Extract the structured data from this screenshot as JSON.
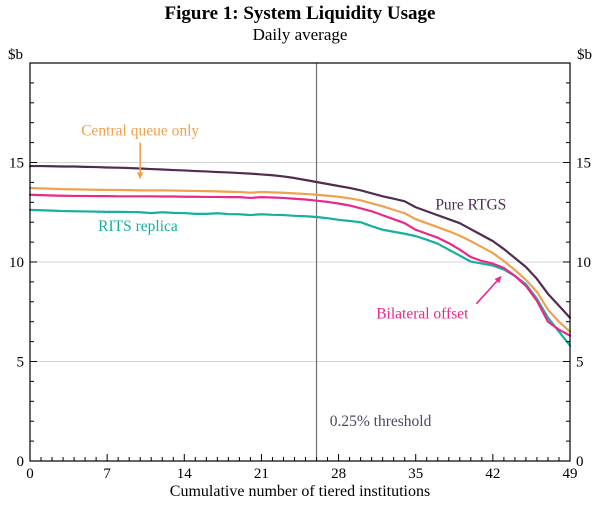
{
  "figure": {
    "title": "Figure 1: System Liquidity Usage",
    "subtitle": "Daily average"
  },
  "chart_data": {
    "type": "line",
    "title": "Figure 1: System Liquidity Usage",
    "subtitle": "Daily average",
    "xlabel": "Cumulative number of tiered institutions",
    "ylabel": "$b",
    "xlim": [
      0,
      49
    ],
    "ylim": [
      0,
      20
    ],
    "x_ticks": [
      0,
      7,
      14,
      21,
      28,
      35,
      42,
      49
    ],
    "y_ticks": [
      0,
      5,
      10,
      15
    ],
    "grid": "horizontal",
    "grid_color": "#d4d4d4",
    "x": [
      0,
      1,
      2,
      3,
      4,
      5,
      6,
      7,
      8,
      9,
      10,
      11,
      12,
      13,
      14,
      15,
      16,
      17,
      18,
      19,
      20,
      21,
      22,
      23,
      24,
      25,
      26,
      27,
      28,
      29,
      30,
      31,
      32,
      33,
      34,
      35,
      36,
      37,
      38,
      39,
      40,
      41,
      42,
      43,
      44,
      45,
      46,
      47,
      48,
      49
    ],
    "series": [
      {
        "name": "RITS replica",
        "color": "#17af9e",
        "values": [
          12.62,
          12.6,
          12.58,
          12.56,
          12.55,
          12.54,
          12.53,
          12.52,
          12.52,
          12.51,
          12.5,
          12.46,
          12.5,
          12.47,
          12.46,
          12.42,
          12.42,
          12.45,
          12.41,
          12.4,
          12.36,
          12.4,
          12.37,
          12.36,
          12.32,
          12.3,
          12.26,
          12.2,
          12.12,
          12.06,
          12.0,
          11.8,
          11.62,
          11.52,
          11.42,
          11.3,
          11.12,
          10.92,
          10.62,
          10.32,
          10.02,
          9.92,
          9.82,
          9.62,
          9.3,
          8.88,
          8.15,
          7.2,
          6.5,
          5.8
        ]
      },
      {
        "name": "Bilateral offset",
        "color": "#e7298a",
        "values": [
          13.38,
          13.36,
          13.34,
          13.33,
          13.32,
          13.32,
          13.31,
          13.31,
          13.3,
          13.3,
          13.3,
          13.3,
          13.29,
          13.29,
          13.28,
          13.28,
          13.27,
          13.27,
          13.26,
          13.26,
          13.22,
          13.26,
          13.24,
          13.22,
          13.18,
          13.14,
          13.08,
          13.02,
          12.94,
          12.84,
          12.7,
          12.55,
          12.35,
          12.15,
          11.95,
          11.62,
          11.42,
          11.22,
          10.95,
          10.62,
          10.25,
          10.05,
          9.92,
          9.7,
          9.3,
          8.8,
          8.05,
          7.0,
          6.6,
          6.3
        ]
      },
      {
        "name": "Central queue only",
        "color": "#f0a04e",
        "values": [
          13.72,
          13.7,
          13.68,
          13.66,
          13.65,
          13.64,
          13.63,
          13.62,
          13.62,
          13.61,
          13.6,
          13.6,
          13.6,
          13.59,
          13.58,
          13.57,
          13.56,
          13.55,
          13.53,
          13.52,
          13.48,
          13.52,
          13.5,
          13.48,
          13.45,
          13.42,
          13.38,
          13.33,
          13.28,
          13.2,
          13.1,
          12.95,
          12.8,
          12.62,
          12.45,
          12.15,
          11.95,
          11.75,
          11.55,
          11.32,
          11.05,
          10.75,
          10.45,
          10.05,
          9.6,
          9.1,
          8.5,
          7.6,
          7.0,
          6.5
        ]
      },
      {
        "name": "Pure RTGS",
        "color": "#512c4f",
        "values": [
          14.82,
          14.82,
          14.81,
          14.8,
          14.8,
          14.78,
          14.77,
          14.75,
          14.74,
          14.72,
          14.7,
          14.67,
          14.65,
          14.62,
          14.6,
          14.57,
          14.55,
          14.52,
          14.5,
          14.47,
          14.44,
          14.4,
          14.36,
          14.3,
          14.22,
          14.12,
          14.02,
          13.92,
          13.82,
          13.72,
          13.6,
          13.45,
          13.3,
          13.18,
          13.05,
          12.75,
          12.55,
          12.35,
          12.15,
          11.95,
          11.65,
          11.35,
          11.05,
          10.65,
          10.2,
          9.75,
          9.15,
          8.4,
          7.8,
          7.2
        ]
      }
    ],
    "threshold": {
      "x": 26,
      "label": "0.25% threshold",
      "label_x": 27.2,
      "label_y": 2.0,
      "line_color": "#6f6f6f",
      "label_color": "#4a4660"
    },
    "annotations": [
      {
        "text": "Central queue only",
        "color": "#f0a04e",
        "x": 10,
        "y": 16.6,
        "anchor": "middle",
        "arrow": {
          "from": [
            10,
            16.0
          ],
          "to": [
            10,
            14.15
          ]
        }
      },
      {
        "text": "RITS replica",
        "color": "#17af9e",
        "x": 9.8,
        "y": 11.8,
        "anchor": "middle"
      },
      {
        "text": "Pure RTGS",
        "color": "#512c4f",
        "x": 40,
        "y": 12.9,
        "anchor": "middle"
      },
      {
        "text": "Bilateral offset",
        "color": "#e7298a",
        "x": 35.6,
        "y": 7.4,
        "anchor": "middle",
        "arrow": {
          "from": [
            40.5,
            7.9
          ],
          "to": [
            42.8,
            9.3
          ]
        }
      }
    ]
  }
}
